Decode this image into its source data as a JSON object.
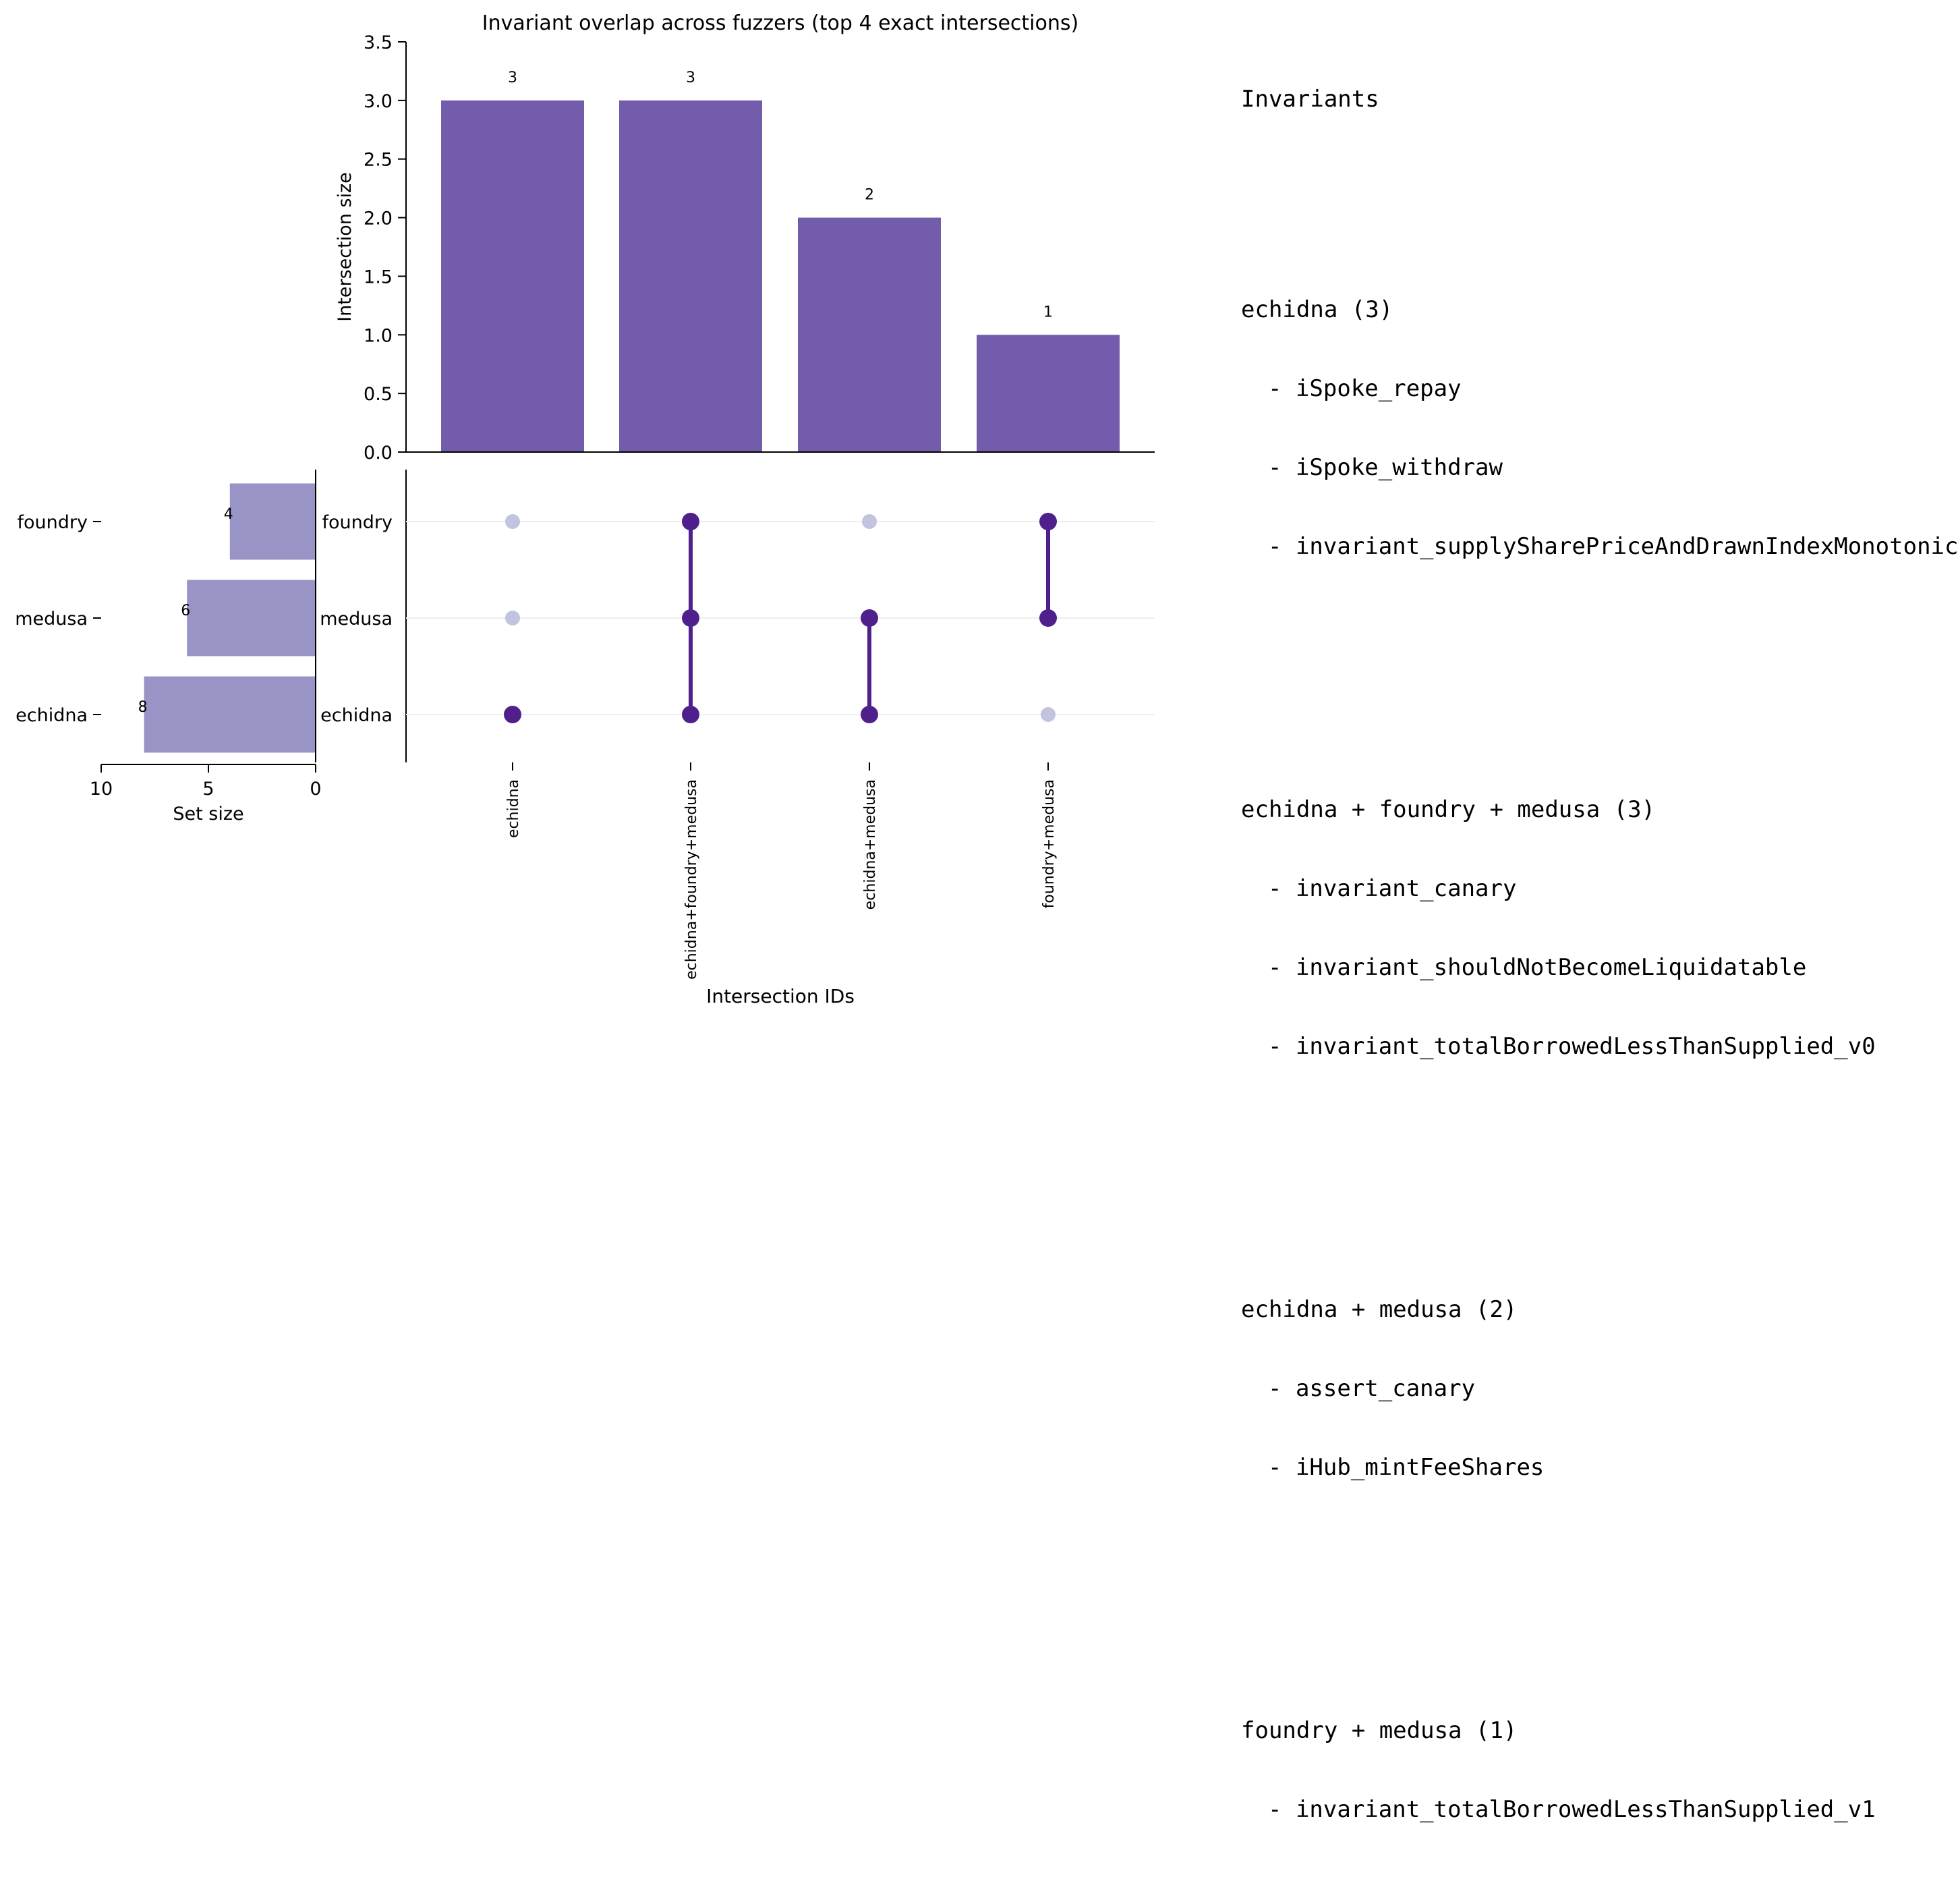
{
  "chart_data": {
    "type": "bar",
    "title": "Invariant overlap across fuzzers (top 4 exact intersections)",
    "intersections": {
      "categories": [
        "echidna",
        "echidna+foundry+medusa",
        "echidna+medusa",
        "foundry+medusa"
      ],
      "values": [
        3,
        3,
        2,
        1
      ],
      "data_labels": [
        "3",
        "3",
        "2",
        "1"
      ],
      "ylabel": "Intersection size",
      "xlabel": "Intersection IDs",
      "ylim": [
        0,
        3.5
      ],
      "yticks": [
        "0.0",
        "0.5",
        "1.0",
        "1.5",
        "2.0",
        "2.5",
        "3.0",
        "3.5"
      ],
      "color": "#725cab"
    },
    "sets": {
      "names": [
        "foundry",
        "medusa",
        "echidna"
      ],
      "sizes": [
        4,
        6,
        8
      ],
      "data_labels": [
        "4",
        "6",
        "8"
      ],
      "xlabel": "Set size",
      "xticks": [
        "10",
        "5",
        "0"
      ],
      "xlim": [
        10,
        0
      ],
      "color": "#9894c6"
    },
    "matrix": {
      "rows": [
        "foundry",
        "medusa",
        "echidna"
      ],
      "membership": [
        [
          false,
          false,
          true
        ],
        [
          true,
          true,
          true
        ],
        [
          false,
          true,
          true
        ],
        [
          true,
          true,
          false
        ]
      ],
      "active_color": "#4f208c",
      "inactive_color": "#c2c3df"
    }
  },
  "invariants_panel": {
    "header": "Invariants",
    "groups": [
      {
        "title": "echidna (3)",
        "items": [
          "- iSpoke_repay",
          "- iSpoke_withdraw",
          "- invariant_supplySharePriceAndDrawnIndexMonotonic"
        ]
      },
      {
        "title": "echidna + foundry + medusa (3)",
        "items": [
          "- invariant_canary",
          "- invariant_shouldNotBecomeLiquidatable",
          "- invariant_totalBorrowedLessThanSupplied_v0"
        ]
      },
      {
        "title": "echidna + medusa (2)",
        "items": [
          "- assert_canary",
          "- iHub_mintFeeShares"
        ]
      },
      {
        "title": "foundry + medusa (1)",
        "items": [
          "- invariant_totalBorrowedLessThanSupplied_v1"
        ]
      }
    ]
  }
}
